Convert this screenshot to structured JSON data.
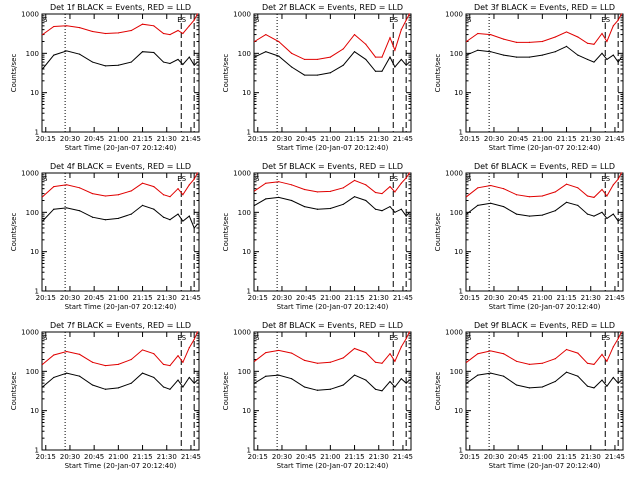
{
  "figure": {
    "xlabel": "Start Time (20-Jan-07 20:12:40)",
    "ylabel": "Counts/sec",
    "x_tick_labels": [
      "20:15",
      "20:30",
      "20:45",
      "21:00",
      "21:15",
      "21:30",
      "21:45"
    ],
    "y_tick_labels": [
      "1",
      "10",
      "100",
      "1000"
    ],
    "marker_s": "S",
    "marker_es": "ES",
    "colors": {
      "events": "#000000",
      "lld": "#e00000"
    }
  },
  "chart_data": [
    {
      "type": "line",
      "title": "Det 1f BLACK = Events, RED = LLD",
      "xlim": [
        "20:12:40",
        "21:50:00"
      ],
      "ylim": [
        1,
        1000
      ],
      "yscale": "log",
      "x": [
        "20:13",
        "20:20",
        "20:28",
        "20:36",
        "20:44",
        "20:52",
        "21:00",
        "21:08",
        "21:15",
        "21:22",
        "21:28",
        "21:32",
        "21:37",
        "21:40",
        "21:44",
        "21:47",
        "21:49"
      ],
      "series": [
        {
          "name": "BLACK = Events",
          "values": [
            40,
            90,
            115,
            95,
            60,
            48,
            50,
            60,
            110,
            105,
            60,
            55,
            70,
            52,
            80,
            50,
            60
          ]
        },
        {
          "name": "RED = LLD",
          "values": [
            300,
            480,
            500,
            450,
            360,
            320,
            330,
            380,
            550,
            500,
            320,
            300,
            380,
            320,
            500,
            700,
            1000
          ]
        }
      ],
      "vlines_dotted": [
        "20:27"
      ],
      "vlines_dashed": [
        "21:39",
        "21:47"
      ],
      "annotations": [
        "S",
        "ES"
      ]
    },
    {
      "type": "line",
      "title": "Det 2f BLACK = Events, RED = LLD",
      "xlim": [
        "20:12:40",
        "21:50:00"
      ],
      "ylim": [
        1,
        1000
      ],
      "yscale": "log",
      "x": [
        "20:13",
        "20:20",
        "20:28",
        "20:36",
        "20:44",
        "20:52",
        "21:00",
        "21:08",
        "21:15",
        "21:22",
        "21:28",
        "21:32",
        "21:37",
        "21:40",
        "21:44",
        "21:47",
        "21:49"
      ],
      "series": [
        {
          "name": "BLACK = Events",
          "values": [
            80,
            110,
            85,
            45,
            28,
            28,
            32,
            50,
            110,
            70,
            35,
            35,
            80,
            45,
            70,
            50,
            60
          ]
        },
        {
          "name": "RED = LLD",
          "values": [
            200,
            300,
            200,
            100,
            70,
            70,
            80,
            130,
            300,
            170,
            80,
            80,
            250,
            120,
            400,
            700,
            1000
          ]
        }
      ],
      "vlines_dotted": [
        "20:27"
      ],
      "vlines_dashed": [
        "21:39",
        "21:47"
      ],
      "annotations": [
        "S",
        "ES"
      ]
    },
    {
      "type": "line",
      "title": "Det 3f BLACK = Events, RED = LLD",
      "xlim": [
        "20:12:40",
        "21:50:00"
      ],
      "ylim": [
        1,
        1000
      ],
      "yscale": "log",
      "x": [
        "20:13",
        "20:20",
        "20:28",
        "20:36",
        "20:44",
        "20:52",
        "21:00",
        "21:08",
        "21:15",
        "21:22",
        "21:28",
        "21:32",
        "21:37",
        "21:40",
        "21:44",
        "21:47",
        "21:49"
      ],
      "series": [
        {
          "name": "BLACK = Events",
          "values": [
            90,
            120,
            110,
            90,
            80,
            80,
            90,
            110,
            150,
            90,
            70,
            60,
            100,
            70,
            90,
            60,
            80
          ]
        },
        {
          "name": "RED = LLD",
          "values": [
            200,
            320,
            300,
            230,
            190,
            190,
            200,
            260,
            350,
            260,
            180,
            170,
            320,
            200,
            500,
            700,
            1000
          ]
        }
      ],
      "vlines_dotted": [
        "20:27"
      ],
      "vlines_dashed": [
        "21:39",
        "21:47"
      ],
      "annotations": [
        "S",
        "ES"
      ]
    },
    {
      "type": "line",
      "title": "Det 4f BLACK = Events, RED = LLD",
      "xlim": [
        "20:12:40",
        "21:50:00"
      ],
      "ylim": [
        1,
        1000
      ],
      "yscale": "log",
      "x": [
        "20:13",
        "20:20",
        "20:28",
        "20:36",
        "20:44",
        "20:52",
        "21:00",
        "21:08",
        "21:15",
        "21:22",
        "21:28",
        "21:32",
        "21:37",
        "21:40",
        "21:44",
        "21:47",
        "21:49"
      ],
      "series": [
        {
          "name": "BLACK = Events",
          "values": [
            60,
            120,
            130,
            110,
            75,
            65,
            70,
            90,
            150,
            120,
            75,
            65,
            90,
            60,
            80,
            40,
            50
          ]
        },
        {
          "name": "RED = LLD",
          "values": [
            250,
            450,
            500,
            420,
            300,
            260,
            280,
            350,
            550,
            450,
            280,
            250,
            400,
            280,
            500,
            700,
            1000
          ]
        }
      ],
      "vlines_dotted": [
        "20:27"
      ],
      "vlines_dashed": [
        "21:39",
        "21:47"
      ],
      "annotations": [
        "S",
        "ES"
      ]
    },
    {
      "type": "line",
      "title": "Det 5f BLACK = Events, RED = LLD",
      "xlim": [
        "20:12:40",
        "21:50:00"
      ],
      "ylim": [
        1,
        1000
      ],
      "yscale": "log",
      "x": [
        "20:13",
        "20:20",
        "20:28",
        "20:36",
        "20:44",
        "20:52",
        "21:00",
        "21:08",
        "21:15",
        "21:22",
        "21:28",
        "21:32",
        "21:37",
        "21:40",
        "21:44",
        "21:47",
        "21:49"
      ],
      "series": [
        {
          "name": "BLACK = Events",
          "values": [
            150,
            220,
            240,
            200,
            140,
            120,
            125,
            160,
            250,
            200,
            120,
            110,
            140,
            100,
            120,
            80,
            100
          ]
        },
        {
          "name": "RED = LLD",
          "values": [
            350,
            550,
            600,
            500,
            380,
            330,
            340,
            420,
            650,
            500,
            320,
            300,
            450,
            330,
            550,
            750,
            1000
          ]
        }
      ],
      "vlines_dotted": [
        "20:27"
      ],
      "vlines_dashed": [
        "21:39",
        "21:47"
      ],
      "annotations": [
        "S",
        "ES"
      ]
    },
    {
      "type": "line",
      "title": "Det 6f BLACK = Events, RED = LLD",
      "xlim": [
        "20:12:40",
        "21:50:00"
      ],
      "ylim": [
        1,
        1000
      ],
      "yscale": "log",
      "x": [
        "20:13",
        "20:20",
        "20:28",
        "20:36",
        "20:44",
        "20:52",
        "21:00",
        "21:08",
        "21:15",
        "21:22",
        "21:28",
        "21:32",
        "21:37",
        "21:40",
        "21:44",
        "21:47",
        "21:49"
      ],
      "series": [
        {
          "name": "BLACK = Events",
          "values": [
            90,
            150,
            170,
            140,
            90,
            80,
            85,
            110,
            180,
            150,
            90,
            80,
            100,
            70,
            90,
            60,
            70
          ]
        },
        {
          "name": "RED = LLD",
          "values": [
            250,
            420,
            480,
            400,
            280,
            250,
            260,
            330,
            520,
            420,
            260,
            240,
            380,
            260,
            500,
            700,
            1000
          ]
        }
      ],
      "vlines_dotted": [
        "20:27"
      ],
      "vlines_dashed": [
        "21:39",
        "21:47"
      ],
      "annotations": [
        "S",
        "ES"
      ]
    },
    {
      "type": "line",
      "title": "Det 7f BLACK = Events, RED = LLD",
      "xlim": [
        "20:12:40",
        "21:50:00"
      ],
      "ylim": [
        1,
        1000
      ],
      "yscale": "log",
      "x": [
        "20:13",
        "20:20",
        "20:28",
        "20:36",
        "20:44",
        "20:52",
        "21:00",
        "21:08",
        "21:15",
        "21:22",
        "21:28",
        "21:32",
        "21:37",
        "21:40",
        "21:44",
        "21:47",
        "21:49"
      ],
      "series": [
        {
          "name": "BLACK = Events",
          "values": [
            40,
            70,
            90,
            75,
            45,
            35,
            38,
            50,
            90,
            70,
            40,
            35,
            60,
            40,
            70,
            50,
            60
          ]
        },
        {
          "name": "RED = LLD",
          "values": [
            150,
            260,
            320,
            270,
            170,
            140,
            150,
            200,
            350,
            280,
            150,
            140,
            250,
            170,
            400,
            650,
            1000
          ]
        }
      ],
      "vlines_dotted": [
        "20:27"
      ],
      "vlines_dashed": [
        "21:39",
        "21:47"
      ],
      "annotations": [
        "S",
        "ES"
      ]
    },
    {
      "type": "line",
      "title": "Det 8f BLACK = Events, RED = LLD",
      "xlim": [
        "20:12:40",
        "21:50:00"
      ],
      "ylim": [
        1,
        1000
      ],
      "yscale": "log",
      "x": [
        "20:13",
        "20:20",
        "20:28",
        "20:36",
        "20:44",
        "20:52",
        "21:00",
        "21:08",
        "21:15",
        "21:22",
        "21:28",
        "21:32",
        "21:37",
        "21:40",
        "21:44",
        "21:47",
        "21:49"
      ],
      "series": [
        {
          "name": "BLACK = Events",
          "values": [
            50,
            75,
            80,
            65,
            40,
            33,
            35,
            45,
            80,
            60,
            35,
            32,
            55,
            40,
            65,
            50,
            60
          ]
        },
        {
          "name": "RED = LLD",
          "values": [
            180,
            300,
            340,
            290,
            190,
            160,
            170,
            220,
            380,
            300,
            170,
            160,
            280,
            180,
            420,
            680,
            1000
          ]
        }
      ],
      "vlines_dotted": [
        "20:27"
      ],
      "vlines_dashed": [
        "21:39",
        "21:47"
      ],
      "annotations": [
        "S",
        "ES"
      ]
    },
    {
      "type": "line",
      "title": "Det 9f BLACK = Events, RED = LLD",
      "xlim": [
        "20:12:40",
        "21:50:00"
      ],
      "ylim": [
        1,
        1000
      ],
      "yscale": "log",
      "x": [
        "20:13",
        "20:20",
        "20:28",
        "20:36",
        "20:44",
        "20:52",
        "21:00",
        "21:08",
        "21:15",
        "21:22",
        "21:28",
        "21:32",
        "21:37",
        "21:40",
        "21:44",
        "21:47",
        "21:49"
      ],
      "series": [
        {
          "name": "BLACK = Events",
          "values": [
            50,
            80,
            90,
            75,
            45,
            38,
            40,
            55,
            95,
            75,
            42,
            38,
            60,
            42,
            70,
            50,
            60
          ]
        },
        {
          "name": "RED = LLD",
          "values": [
            170,
            280,
            330,
            280,
            180,
            150,
            160,
            210,
            360,
            290,
            160,
            150,
            270,
            180,
            420,
            680,
            1000
          ]
        }
      ],
      "vlines_dotted": [
        "20:27"
      ],
      "vlines_dashed": [
        "21:39",
        "21:47"
      ],
      "annotations": [
        "S",
        "ES"
      ]
    }
  ]
}
